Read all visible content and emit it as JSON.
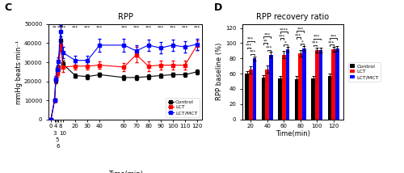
{
  "chart_data": [
    {
      "type": "line",
      "title": "RPP",
      "panel_label": "C",
      "x_label": "Time(min)",
      "y_label": "mmHg·beats·min⁻¹",
      "x": [
        0,
        3,
        4,
        5,
        6,
        8,
        10,
        20,
        30,
        40,
        60,
        70,
        80,
        90,
        100,
        110,
        120
      ],
      "xlim": [
        -2,
        124
      ],
      "xticks": [
        0,
        3,
        4,
        5,
        6,
        8,
        10,
        20,
        30,
        40,
        60,
        70,
        80,
        90,
        100,
        110,
        120
      ],
      "ylim": [
        0,
        50000
      ],
      "yticks": [
        0,
        10000,
        20000,
        30000,
        40000,
        50000
      ],
      "marker": "square",
      "legend": "lower right",
      "series": [
        {
          "name": "Control",
          "color": "#000000",
          "values": [
            0,
            10000,
            20500,
            26000,
            27000,
            41500,
            29000,
            23000,
            22500,
            23500,
            22000,
            22000,
            22500,
            23000,
            23500,
            23500,
            25000
          ],
          "errors": [
            300,
            800,
            1500,
            1500,
            1500,
            2000,
            2000,
            1200,
            1200,
            1200,
            1200,
            1200,
            1200,
            1200,
            1200,
            1200,
            1200
          ]
        },
        {
          "name": "LCT",
          "color": "#FF0000",
          "values": [
            0,
            10000,
            21000,
            24000,
            26500,
            39000,
            27500,
            28000,
            28000,
            28500,
            27500,
            34000,
            28000,
            28500,
            28500,
            28500,
            39000
          ],
          "errors": [
            300,
            800,
            1800,
            1800,
            1800,
            3000,
            2500,
            2000,
            2000,
            2000,
            2000,
            4000,
            2500,
            2500,
            2500,
            2500,
            2500
          ]
        },
        {
          "name": "LCT/MCT",
          "color": "#0000FF",
          "values": [
            0,
            10000,
            21000,
            26000,
            30500,
            46000,
            35000,
            31000,
            31000,
            39000,
            39000,
            36000,
            39000,
            37500,
            39000,
            38000,
            39500
          ],
          "errors": [
            300,
            800,
            1800,
            2200,
            2200,
            3500,
            3000,
            2500,
            2500,
            3500,
            3500,
            3000,
            3000,
            3000,
            3000,
            3000,
            3000
          ]
        }
      ],
      "annotations": [
        {
          "x": 3,
          "y": 47000,
          "text": "**"
        },
        {
          "x": 8,
          "y": 47000,
          "text": "***"
        },
        {
          "x": 10,
          "y": 47000,
          "text": "***"
        },
        {
          "x": 20,
          "y": 47000,
          "text": "***"
        },
        {
          "x": 30,
          "y": 47000,
          "text": "***"
        },
        {
          "x": 40,
          "y": 47000,
          "text": "***"
        },
        {
          "x": 60,
          "y": 47000,
          "text": "***"
        },
        {
          "x": 70,
          "y": 47000,
          "text": "***"
        },
        {
          "x": 80,
          "y": 47000,
          "text": "***"
        },
        {
          "x": 90,
          "y": 47000,
          "text": "***"
        },
        {
          "x": 100,
          "y": 47000,
          "text": "***"
        },
        {
          "x": 110,
          "y": 47000,
          "text": "***"
        },
        {
          "x": 120,
          "y": 47000,
          "text": "***"
        }
      ]
    },
    {
      "type": "bar",
      "title": "RPP recovery ratio",
      "panel_label": "D",
      "x_label": "Time(min)",
      "y_label": "RPP baseline (%)",
      "x": [
        20,
        40,
        60,
        80,
        100,
        120
      ],
      "xlim": [
        10,
        132
      ],
      "xticks": [
        20,
        40,
        60,
        80,
        100,
        120
      ],
      "ylim": [
        0,
        125
      ],
      "yticks": [
        0,
        20,
        40,
        60,
        80,
        100,
        120
      ],
      "legend": "right",
      "series": [
        {
          "name": "Control",
          "color": "#000000",
          "values": [
            60,
            55,
            54,
            53,
            54,
            57
          ],
          "errors": [
            3.5,
            3.5,
            3.5,
            4,
            3.5,
            3.5
          ]
        },
        {
          "name": "LCT",
          "color": "#FF0000",
          "values": [
            65,
            66,
            85,
            87,
            91,
            92
          ],
          "errors": [
            5,
            5,
            5,
            4.5,
            3.5,
            3
          ]
        },
        {
          "name": "LCT/MCT",
          "color": "#0000FF",
          "values": [
            80,
            85,
            92,
            93,
            91,
            93
          ],
          "errors": [
            3,
            3.5,
            3,
            3,
            3,
            3
          ]
        }
      ],
      "annotations": [
        {
          "x": 20,
          "between": [
            "LCT",
            "LCT/MCT"
          ],
          "text": "***"
        },
        {
          "x": 20,
          "between": [
            "Control",
            "LCT"
          ],
          "text": "***"
        },
        {
          "x": 20,
          "between": [
            "Control",
            "LCT/MCT"
          ],
          "text": "***"
        },
        {
          "x": 40,
          "between": [
            "LCT",
            "LCT/MCT"
          ],
          "text": "***"
        },
        {
          "x": 40,
          "between": [
            "Control",
            "LCT"
          ],
          "text": "**"
        },
        {
          "x": 40,
          "between": [
            "Control",
            "LCT/MCT"
          ],
          "text": "***"
        },
        {
          "x": 60,
          "between": [
            "LCT",
            "LCT/MCT"
          ],
          "text": "*"
        },
        {
          "x": 60,
          "between": [
            "Control",
            "LCT"
          ],
          "text": "***"
        },
        {
          "x": 60,
          "between": [
            "Control",
            "LCT/MCT"
          ],
          "text": "****"
        },
        {
          "x": 80,
          "between": [
            "LCT",
            "LCT/MCT"
          ],
          "text": "*"
        },
        {
          "x": 80,
          "between": [
            "Control",
            "LCT"
          ],
          "text": "***"
        },
        {
          "x": 80,
          "between": [
            "Control",
            "LCT/MCT"
          ],
          "text": "***"
        },
        {
          "x": 100,
          "between": [
            "Control",
            "LCT"
          ],
          "text": "***"
        },
        {
          "x": 100,
          "between": [
            "Control",
            "LCT/MCT"
          ],
          "text": "***"
        },
        {
          "x": 120,
          "between": [
            "Control",
            "LCT"
          ],
          "text": "***"
        },
        {
          "x": 120,
          "between": [
            "Control",
            "LCT/MCT"
          ],
          "text": "***"
        }
      ]
    }
  ]
}
